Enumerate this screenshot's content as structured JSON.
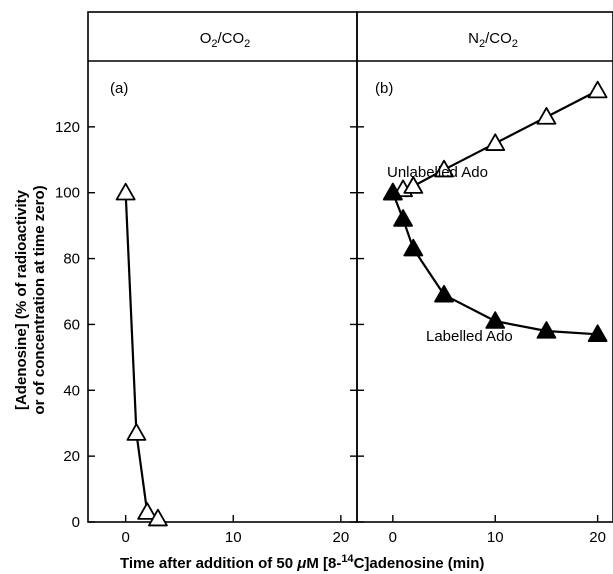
{
  "chart_data": {
    "type": "line",
    "xlabel": {
      "prefix": "Time after addition of 50 ",
      "mu": "μ",
      "middle": "M [8-",
      "sup": "14",
      "suffix": "C]adenosine (min)"
    },
    "ylabel_line1": "[Adenosine] (% of radioactivity",
    "ylabel_line2": "or of concentration at time zero)",
    "ylim": [
      0,
      140
    ],
    "xlim": [
      -3.5,
      21.5
    ],
    "yticks": [
      0,
      20,
      40,
      60,
      80,
      100,
      120
    ],
    "xticks": [
      0,
      10,
      20
    ],
    "panels": [
      {
        "header": {
          "main": "O",
          "sub1": "2",
          "mid": "/CO",
          "sub2": "2"
        },
        "letter": "(a)",
        "series": [
          {
            "marker": "open-triangle",
            "x": [
              0,
              1,
              2,
              3
            ],
            "y": [
              100,
              27,
              3,
              1
            ]
          }
        ],
        "annotations": []
      },
      {
        "header": {
          "main": "N",
          "sub1": "2",
          "mid": "/CO",
          "sub2": "2"
        },
        "letter": "(b)",
        "series": [
          {
            "name": "Unlabelled Ado",
            "marker": "open-triangle",
            "x": [
              0,
              1,
              2,
              5,
              10,
              15,
              20
            ],
            "y": [
              100,
              101,
              102,
              107,
              115,
              123,
              131
            ]
          },
          {
            "name": "Labelled Ado",
            "marker": "filled-triangle",
            "x": [
              0,
              1,
              2,
              5,
              10,
              15,
              20
            ],
            "y": [
              100,
              92,
              83,
              69,
              61,
              58,
              57
            ]
          }
        ],
        "annotations": [
          "Unlabelled Ado",
          "Labelled Ado"
        ]
      }
    ]
  }
}
